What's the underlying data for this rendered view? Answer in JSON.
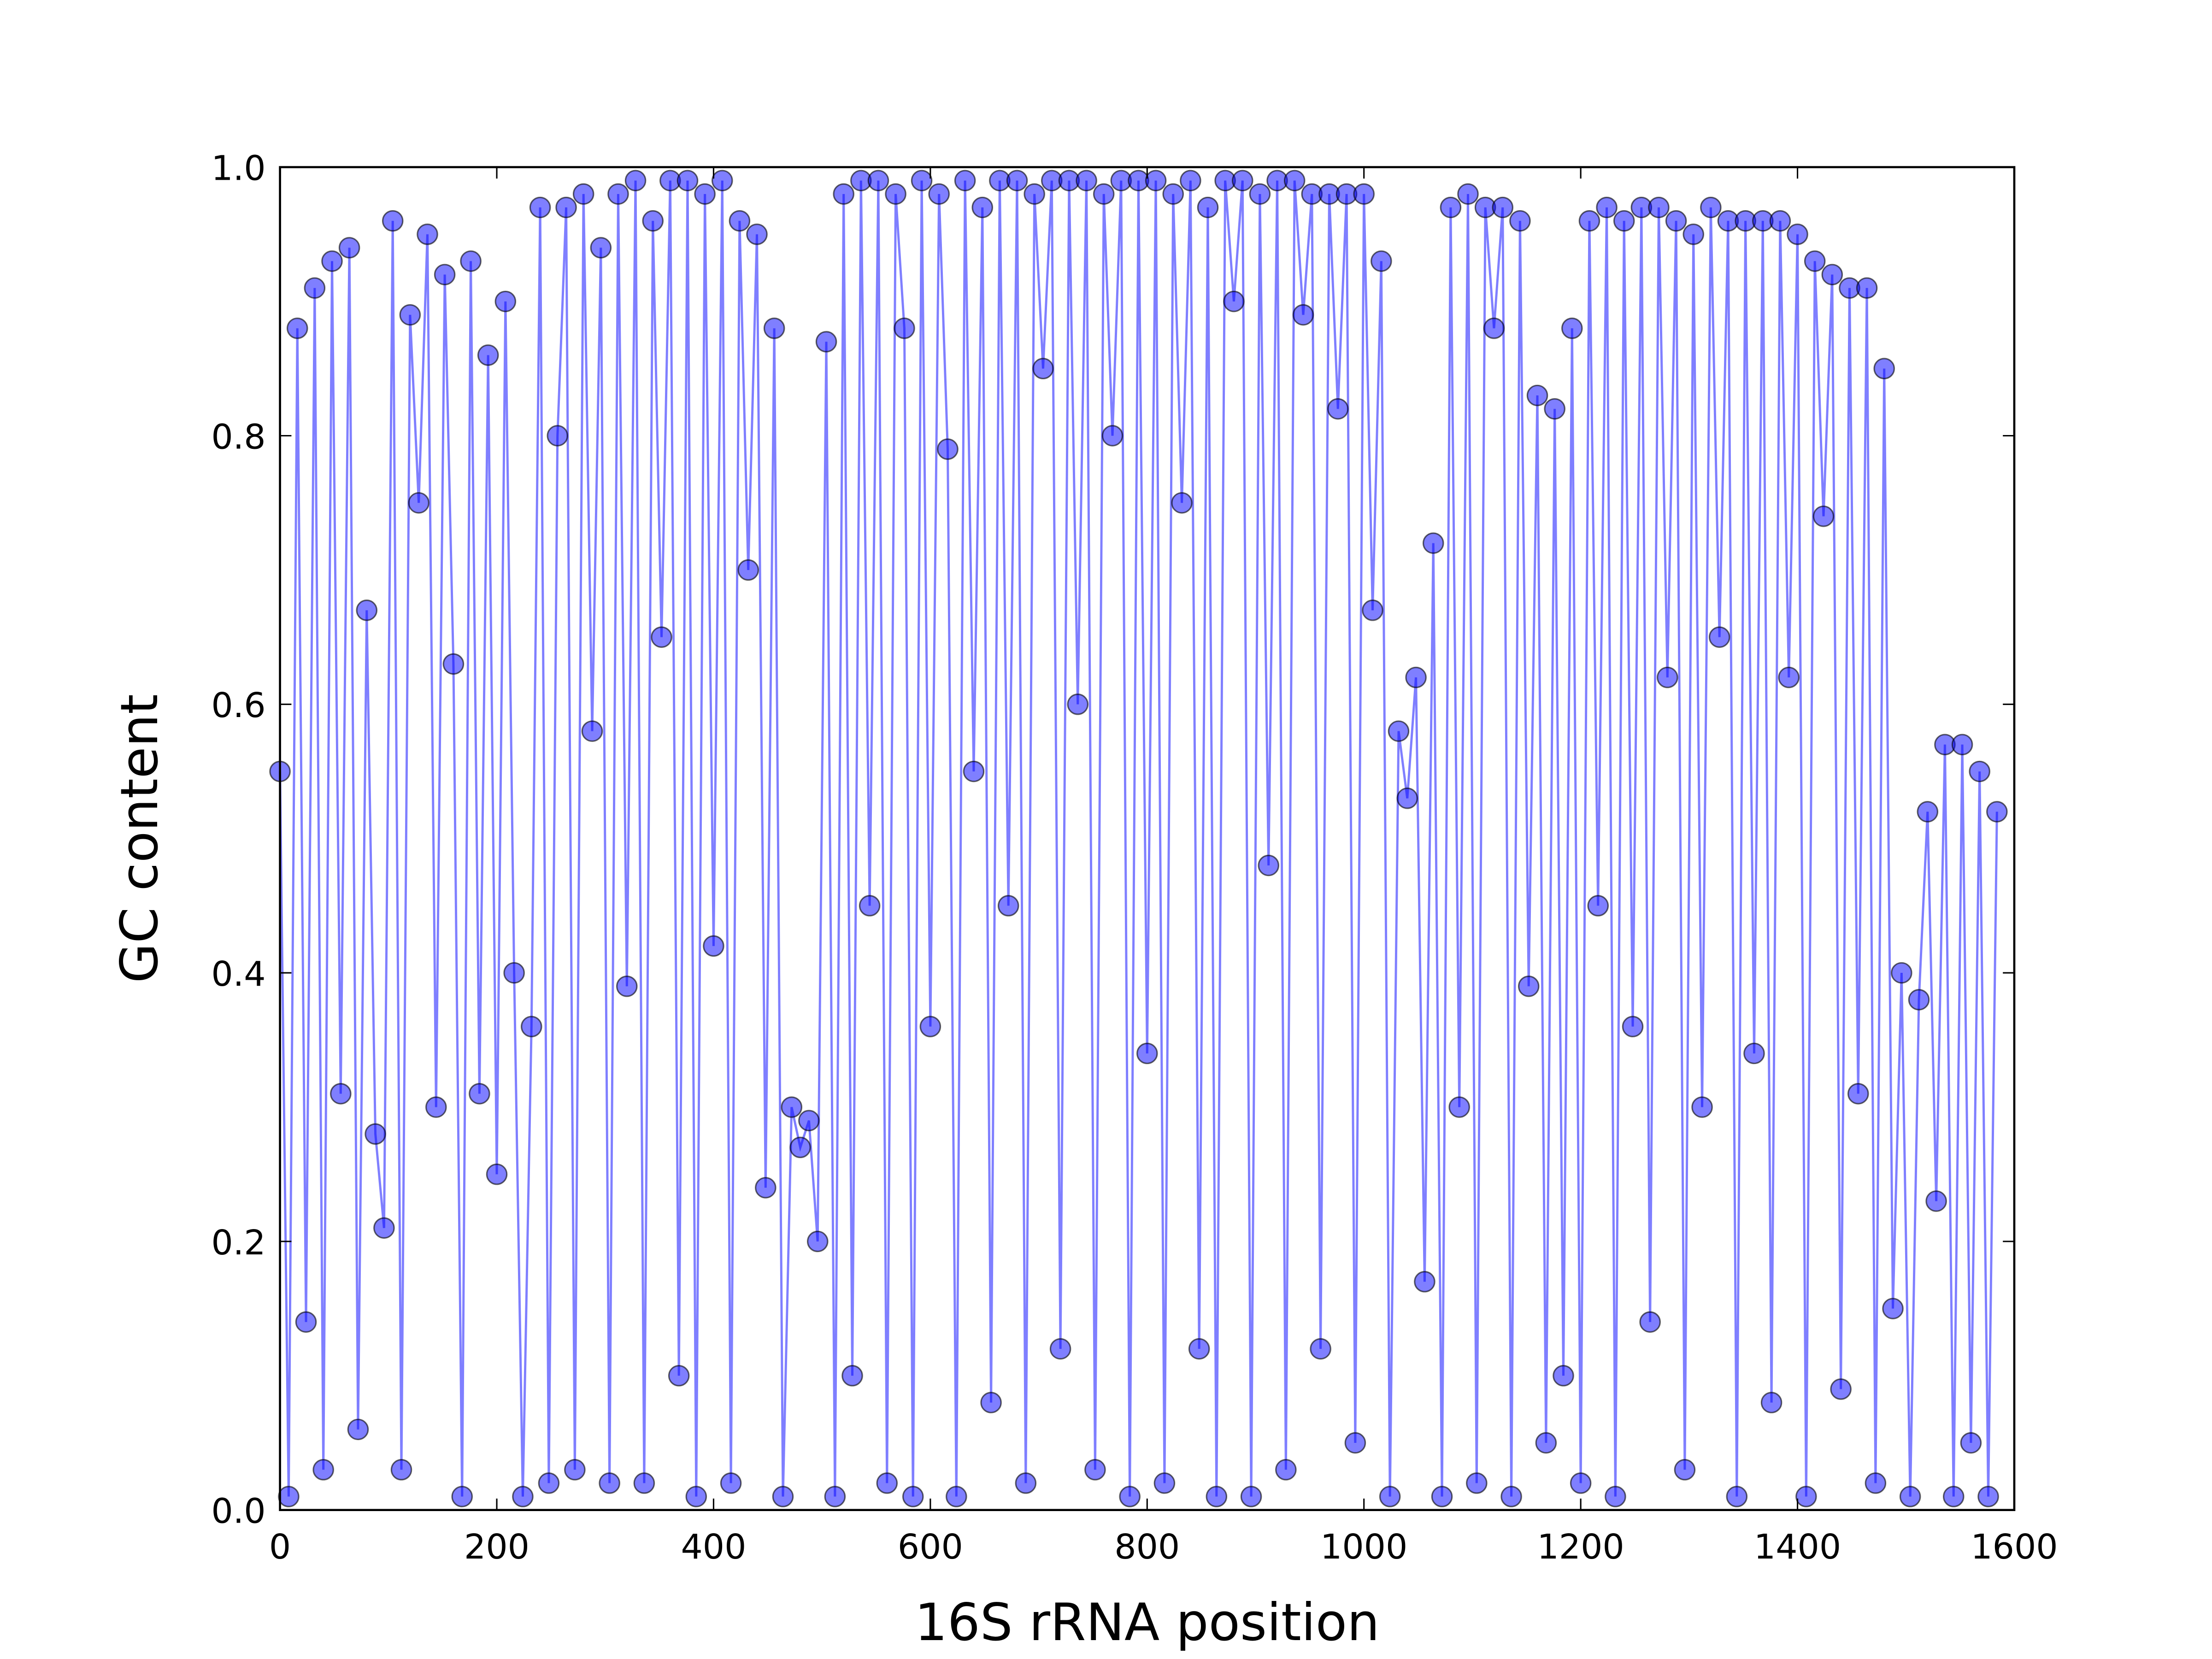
{
  "chart_data": {
    "type": "line",
    "xlabel": "16S rRNA position",
    "ylabel": "GC content",
    "x": [
      0,
      8,
      16,
      24,
      32,
      40,
      48,
      56,
      64,
      72,
      80,
      88,
      96,
      104,
      112,
      120,
      128,
      136,
      144,
      152,
      160,
      168,
      176,
      184,
      192,
      200,
      208,
      216,
      224,
      232,
      240,
      248,
      256,
      264,
      272,
      280,
      288,
      296,
      304,
      312,
      320,
      328,
      336,
      344,
      352,
      360,
      368,
      376,
      384,
      392,
      400,
      408,
      416,
      424,
      432,
      440,
      448,
      456,
      464,
      472,
      480,
      488,
      496,
      504,
      512,
      520,
      528,
      536,
      544,
      552,
      560,
      568,
      576,
      584,
      592,
      600,
      608,
      616,
      624,
      632,
      640,
      648,
      656,
      664,
      672,
      680,
      688,
      696,
      704,
      712,
      720,
      728,
      736,
      744,
      752,
      760,
      768,
      776,
      784,
      792,
      800,
      808,
      816,
      824,
      832,
      840,
      848,
      856,
      864,
      872,
      880,
      888,
      896,
      904,
      912,
      920,
      928,
      936,
      944,
      952,
      960,
      968,
      976,
      984,
      992,
      1000,
      1008,
      1016,
      1024,
      1032,
      1040,
      1048,
      1056,
      1064,
      1072,
      1080,
      1088,
      1096,
      1104,
      1112,
      1120,
      1128,
      1136,
      1144,
      1152,
      1160,
      1168,
      1176,
      1184,
      1192,
      1200,
      1208,
      1216,
      1224,
      1232,
      1240,
      1248,
      1256,
      1264,
      1272,
      1280,
      1288,
      1296,
      1304,
      1312,
      1320,
      1328,
      1336,
      1344,
      1352,
      1360,
      1368,
      1376,
      1384,
      1392,
      1400,
      1408,
      1416,
      1424,
      1432,
      1440,
      1448,
      1456,
      1464,
      1472,
      1480,
      1488,
      1496,
      1504,
      1512,
      1520,
      1528,
      1536,
      1544,
      1552,
      1560,
      1568,
      1576,
      1584
    ],
    "series": [
      {
        "name": "GC content",
        "color": "#0000ff",
        "values": [
          0.55,
          0.01,
          0.88,
          0.14,
          0.91,
          0.03,
          0.93,
          0.31,
          0.94,
          0.06,
          0.67,
          0.28,
          0.21,
          0.96,
          0.03,
          0.89,
          0.75,
          0.95,
          0.3,
          0.92,
          0.63,
          0.01,
          0.93,
          0.31,
          0.86,
          0.25,
          0.9,
          0.4,
          0.01,
          0.36,
          0.97,
          0.02,
          0.8,
          0.97,
          0.03,
          0.98,
          0.58,
          0.94,
          0.02,
          0.98,
          0.39,
          0.99,
          0.02,
          0.96,
          0.65,
          0.99,
          0.1,
          0.99,
          0.01,
          0.98,
          0.42,
          0.99,
          0.02,
          0.96,
          0.7,
          0.95,
          0.24,
          0.88,
          0.01,
          0.3,
          0.27,
          0.29,
          0.2,
          0.87,
          0.01,
          0.98,
          0.1,
          0.99,
          0.45,
          0.99,
          0.02,
          0.98,
          0.88,
          0.01,
          0.99,
          0.36,
          0.98,
          0.79,
          0.01,
          0.99,
          0.55,
          0.97,
          0.08,
          0.99,
          0.45,
          0.99,
          0.02,
          0.98,
          0.85,
          0.99,
          0.12,
          0.99,
          0.6,
          0.99,
          0.03,
          0.98,
          0.8,
          0.99,
          0.01,
          0.99,
          0.34,
          0.99,
          0.02,
          0.98,
          0.75,
          0.99,
          0.12,
          0.97,
          0.01,
          0.99,
          0.9,
          0.99,
          0.01,
          0.98,
          0.48,
          0.99,
          0.03,
          0.99,
          0.89,
          0.98,
          0.12,
          0.98,
          0.82,
          0.98,
          0.05,
          0.98,
          0.67,
          0.93,
          0.01,
          0.58,
          0.53,
          0.62,
          0.17,
          0.72,
          0.01,
          0.97,
          0.3,
          0.98,
          0.02,
          0.97,
          0.88,
          0.97,
          0.01,
          0.96,
          0.39,
          0.83,
          0.05,
          0.82,
          0.1,
          0.88,
          0.02,
          0.96,
          0.45,
          0.97,
          0.01,
          0.96,
          0.36,
          0.97,
          0.14,
          0.97,
          0.62,
          0.96,
          0.03,
          0.95,
          0.3,
          0.97,
          0.65,
          0.96,
          0.01,
          0.96,
          0.34,
          0.96,
          0.08,
          0.96,
          0.62,
          0.95,
          0.01,
          0.93,
          0.74,
          0.92,
          0.09,
          0.91,
          0.31,
          0.91,
          0.02,
          0.85,
          0.15,
          0.4,
          0.01,
          0.38,
          0.52,
          0.23,
          0.57,
          0.01,
          0.57,
          0.05,
          0.55,
          0.01,
          0.52
        ]
      }
    ],
    "xlim": [
      0,
      1600
    ],
    "xticks": [
      0,
      200,
      400,
      600,
      800,
      1000,
      1200,
      1400,
      1600
    ],
    "ylim": [
      0,
      1
    ],
    "yticks": [
      {
        "value": 0,
        "label": "0.0"
      },
      0.2,
      0.4,
      0.6,
      0.8,
      {
        "value": 1,
        "label": "1.0"
      }
    ],
    "grid": false
  }
}
